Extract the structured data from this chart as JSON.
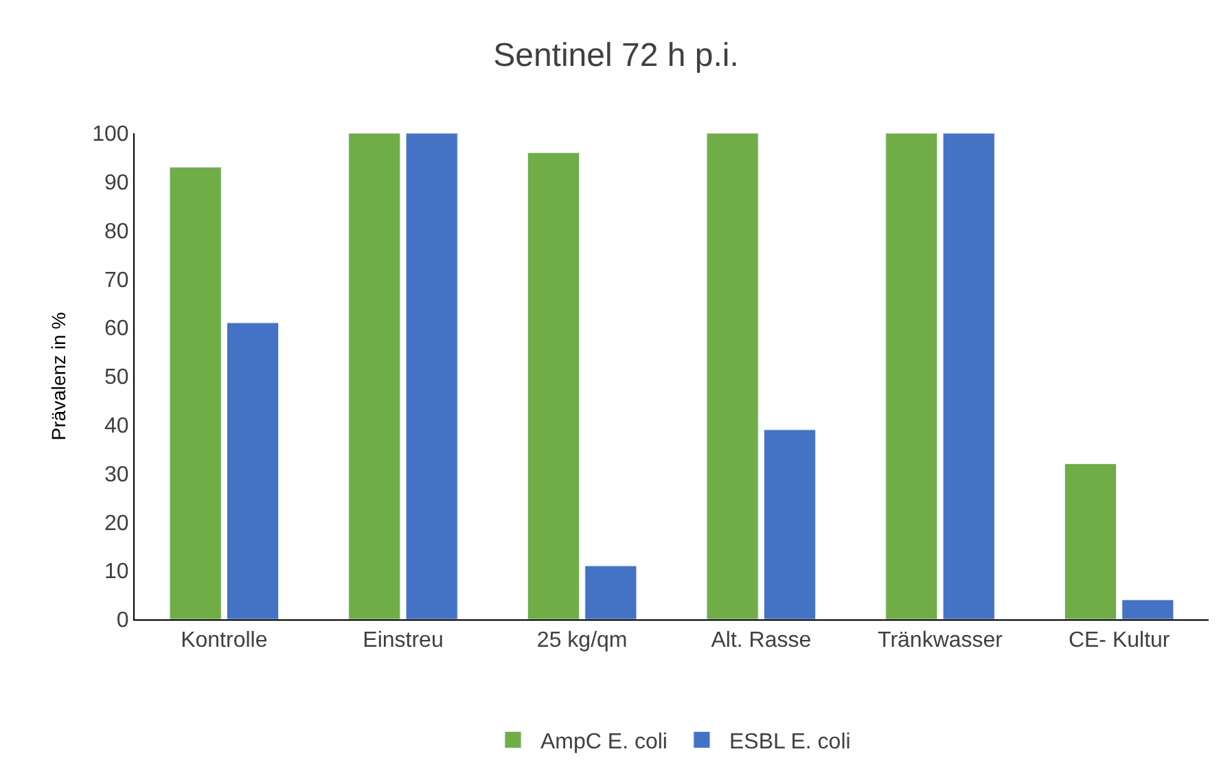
{
  "chart_data": {
    "type": "bar",
    "title": "Sentinel 72 h p.i.",
    "ylabel": "Prävalenz in %",
    "categories": [
      "Kontrolle",
      "Einstreu",
      "25 kg/qm",
      "Alt. Rasse",
      "Tränkwasser",
      "CE- Kultur"
    ],
    "series": [
      {
        "name": "AmpC E. coli",
        "color": "#70ad47",
        "values": [
          93,
          100,
          96,
          100,
          100,
          32
        ]
      },
      {
        "name": "ESBL E. coli",
        "color": "#4472c4",
        "values": [
          61,
          100,
          11,
          39,
          100,
          4
        ]
      }
    ],
    "ylim": [
      0,
      100
    ],
    "yticks": [
      0,
      10,
      20,
      30,
      40,
      50,
      60,
      70,
      80,
      90,
      100
    ],
    "legend": "bottom"
  }
}
